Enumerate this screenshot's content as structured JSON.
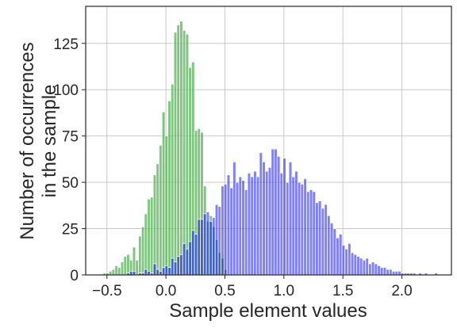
{
  "chart_data": {
    "type": "bar",
    "subtype": "overlaid-histogram",
    "title": "",
    "xlabel": "Sample element values",
    "ylabel_lines": [
      "Number of occurrences",
      "in the sample"
    ],
    "xlim": [
      -0.68,
      2.42
    ],
    "ylim": [
      0,
      145
    ],
    "x_ticks": [
      -0.5,
      0.0,
      0.5,
      1.0,
      1.5,
      2.0
    ],
    "x_tick_labels": [
      "−0.5",
      "0.0",
      "0.5",
      "1.0",
      "1.5",
      "2.0"
    ],
    "y_ticks": [
      0,
      25,
      50,
      75,
      100,
      125
    ],
    "y_tick_labels": [
      "0",
      "25",
      "50",
      "75",
      "100",
      "125"
    ],
    "grid": true,
    "legend": "none",
    "series": [
      {
        "color": "#2ca02c",
        "opacity": 0.6,
        "bin_width": 0.0255,
        "bins": [
          [
            -0.52,
            1
          ],
          [
            -0.495,
            1
          ],
          [
            -0.47,
            2
          ],
          [
            -0.445,
            3
          ],
          [
            -0.42,
            5
          ],
          [
            -0.395,
            4
          ],
          [
            -0.37,
            7
          ],
          [
            -0.345,
            10
          ],
          [
            -0.32,
            11
          ],
          [
            -0.295,
            8
          ],
          [
            -0.27,
            15
          ],
          [
            -0.245,
            8
          ],
          [
            -0.22,
            21
          ],
          [
            -0.195,
            26
          ],
          [
            -0.17,
            33
          ],
          [
            -0.145,
            41
          ],
          [
            -0.12,
            42
          ],
          [
            -0.095,
            54
          ],
          [
            -0.07,
            60
          ],
          [
            -0.045,
            70
          ],
          [
            -0.02,
            88
          ],
          [
            0.005,
            75
          ],
          [
            0.03,
            94
          ],
          [
            0.055,
            103
          ],
          [
            0.08,
            131
          ],
          [
            0.105,
            135
          ],
          [
            0.13,
            137
          ],
          [
            0.155,
            132
          ],
          [
            0.18,
            130
          ],
          [
            0.205,
            112
          ],
          [
            0.23,
            115
          ],
          [
            0.255,
            78
          ],
          [
            0.28,
            79
          ],
          [
            0.305,
            77
          ],
          [
            0.33,
            48
          ],
          [
            0.355,
            29
          ],
          [
            0.38,
            32
          ],
          [
            0.405,
            26
          ],
          [
            0.43,
            19
          ],
          [
            0.455,
            12
          ],
          [
            0.48,
            9
          ],
          [
            0.505,
            3
          ]
        ]
      },
      {
        "color": "#0000ff",
        "opacity": 0.5,
        "bin_width": 0.0253,
        "bins": [
          [
            -0.32,
            1
          ],
          [
            -0.295,
            2
          ],
          [
            -0.27,
            2
          ],
          [
            -0.245,
            0
          ],
          [
            -0.22,
            1
          ],
          [
            -0.195,
            1
          ],
          [
            -0.17,
            3
          ],
          [
            -0.145,
            2
          ],
          [
            -0.12,
            1
          ],
          [
            -0.095,
            6
          ],
          [
            -0.07,
            3
          ],
          [
            -0.045,
            2
          ],
          [
            -0.02,
            4
          ],
          [
            0.005,
            5
          ],
          [
            0.03,
            4
          ],
          [
            0.055,
            9
          ],
          [
            0.08,
            7
          ],
          [
            0.105,
            10
          ],
          [
            0.13,
            11
          ],
          [
            0.155,
            17
          ],
          [
            0.18,
            14
          ],
          [
            0.205,
            18
          ],
          [
            0.23,
            24
          ],
          [
            0.255,
            22
          ],
          [
            0.28,
            30
          ],
          [
            0.305,
            30
          ],
          [
            0.33,
            33
          ],
          [
            0.355,
            34
          ],
          [
            0.38,
            29
          ],
          [
            0.405,
            31
          ],
          [
            0.43,
            38
          ],
          [
            0.455,
            37
          ],
          [
            0.48,
            48
          ],
          [
            0.505,
            49
          ],
          [
            0.53,
            54
          ],
          [
            0.555,
            47
          ],
          [
            0.58,
            61
          ],
          [
            0.605,
            50
          ],
          [
            0.63,
            53
          ],
          [
            0.655,
            51
          ],
          [
            0.68,
            46
          ],
          [
            0.705,
            55
          ],
          [
            0.73,
            53
          ],
          [
            0.755,
            56
          ],
          [
            0.78,
            53
          ],
          [
            0.805,
            66
          ],
          [
            0.83,
            61
          ],
          [
            0.855,
            56
          ],
          [
            0.88,
            58
          ],
          [
            0.905,
            68
          ],
          [
            0.93,
            68
          ],
          [
            0.955,
            64
          ],
          [
            0.98,
            55
          ],
          [
            1.005,
            63
          ],
          [
            1.03,
            50
          ],
          [
            1.055,
            61
          ],
          [
            1.08,
            53
          ],
          [
            1.105,
            56
          ],
          [
            1.13,
            50
          ],
          [
            1.155,
            49
          ],
          [
            1.18,
            52
          ],
          [
            1.205,
            45
          ],
          [
            1.23,
            46
          ],
          [
            1.255,
            45
          ],
          [
            1.28,
            39
          ],
          [
            1.305,
            40
          ],
          [
            1.33,
            36
          ],
          [
            1.355,
            38
          ],
          [
            1.38,
            32
          ],
          [
            1.405,
            28
          ],
          [
            1.43,
            25
          ],
          [
            1.455,
            20
          ],
          [
            1.48,
            22
          ],
          [
            1.505,
            16
          ],
          [
            1.53,
            14
          ],
          [
            1.555,
            17
          ],
          [
            1.58,
            12
          ],
          [
            1.605,
            11
          ],
          [
            1.63,
            10
          ],
          [
            1.655,
            9
          ],
          [
            1.68,
            8
          ],
          [
            1.705,
            9
          ],
          [
            1.73,
            6
          ],
          [
            1.755,
            7
          ],
          [
            1.78,
            6
          ],
          [
            1.805,
            5
          ],
          [
            1.83,
            4
          ],
          [
            1.855,
            4
          ],
          [
            1.88,
            3
          ],
          [
            1.905,
            3
          ],
          [
            1.93,
            2
          ],
          [
            1.955,
            2
          ],
          [
            1.98,
            2
          ],
          [
            2.005,
            1
          ],
          [
            2.03,
            1
          ],
          [
            2.055,
            1
          ],
          [
            2.08,
            1
          ],
          [
            2.105,
            1
          ],
          [
            2.13,
            0
          ],
          [
            2.155,
            1
          ],
          [
            2.18,
            0
          ],
          [
            2.205,
            1
          ],
          [
            2.29,
            1
          ]
        ]
      }
    ]
  }
}
